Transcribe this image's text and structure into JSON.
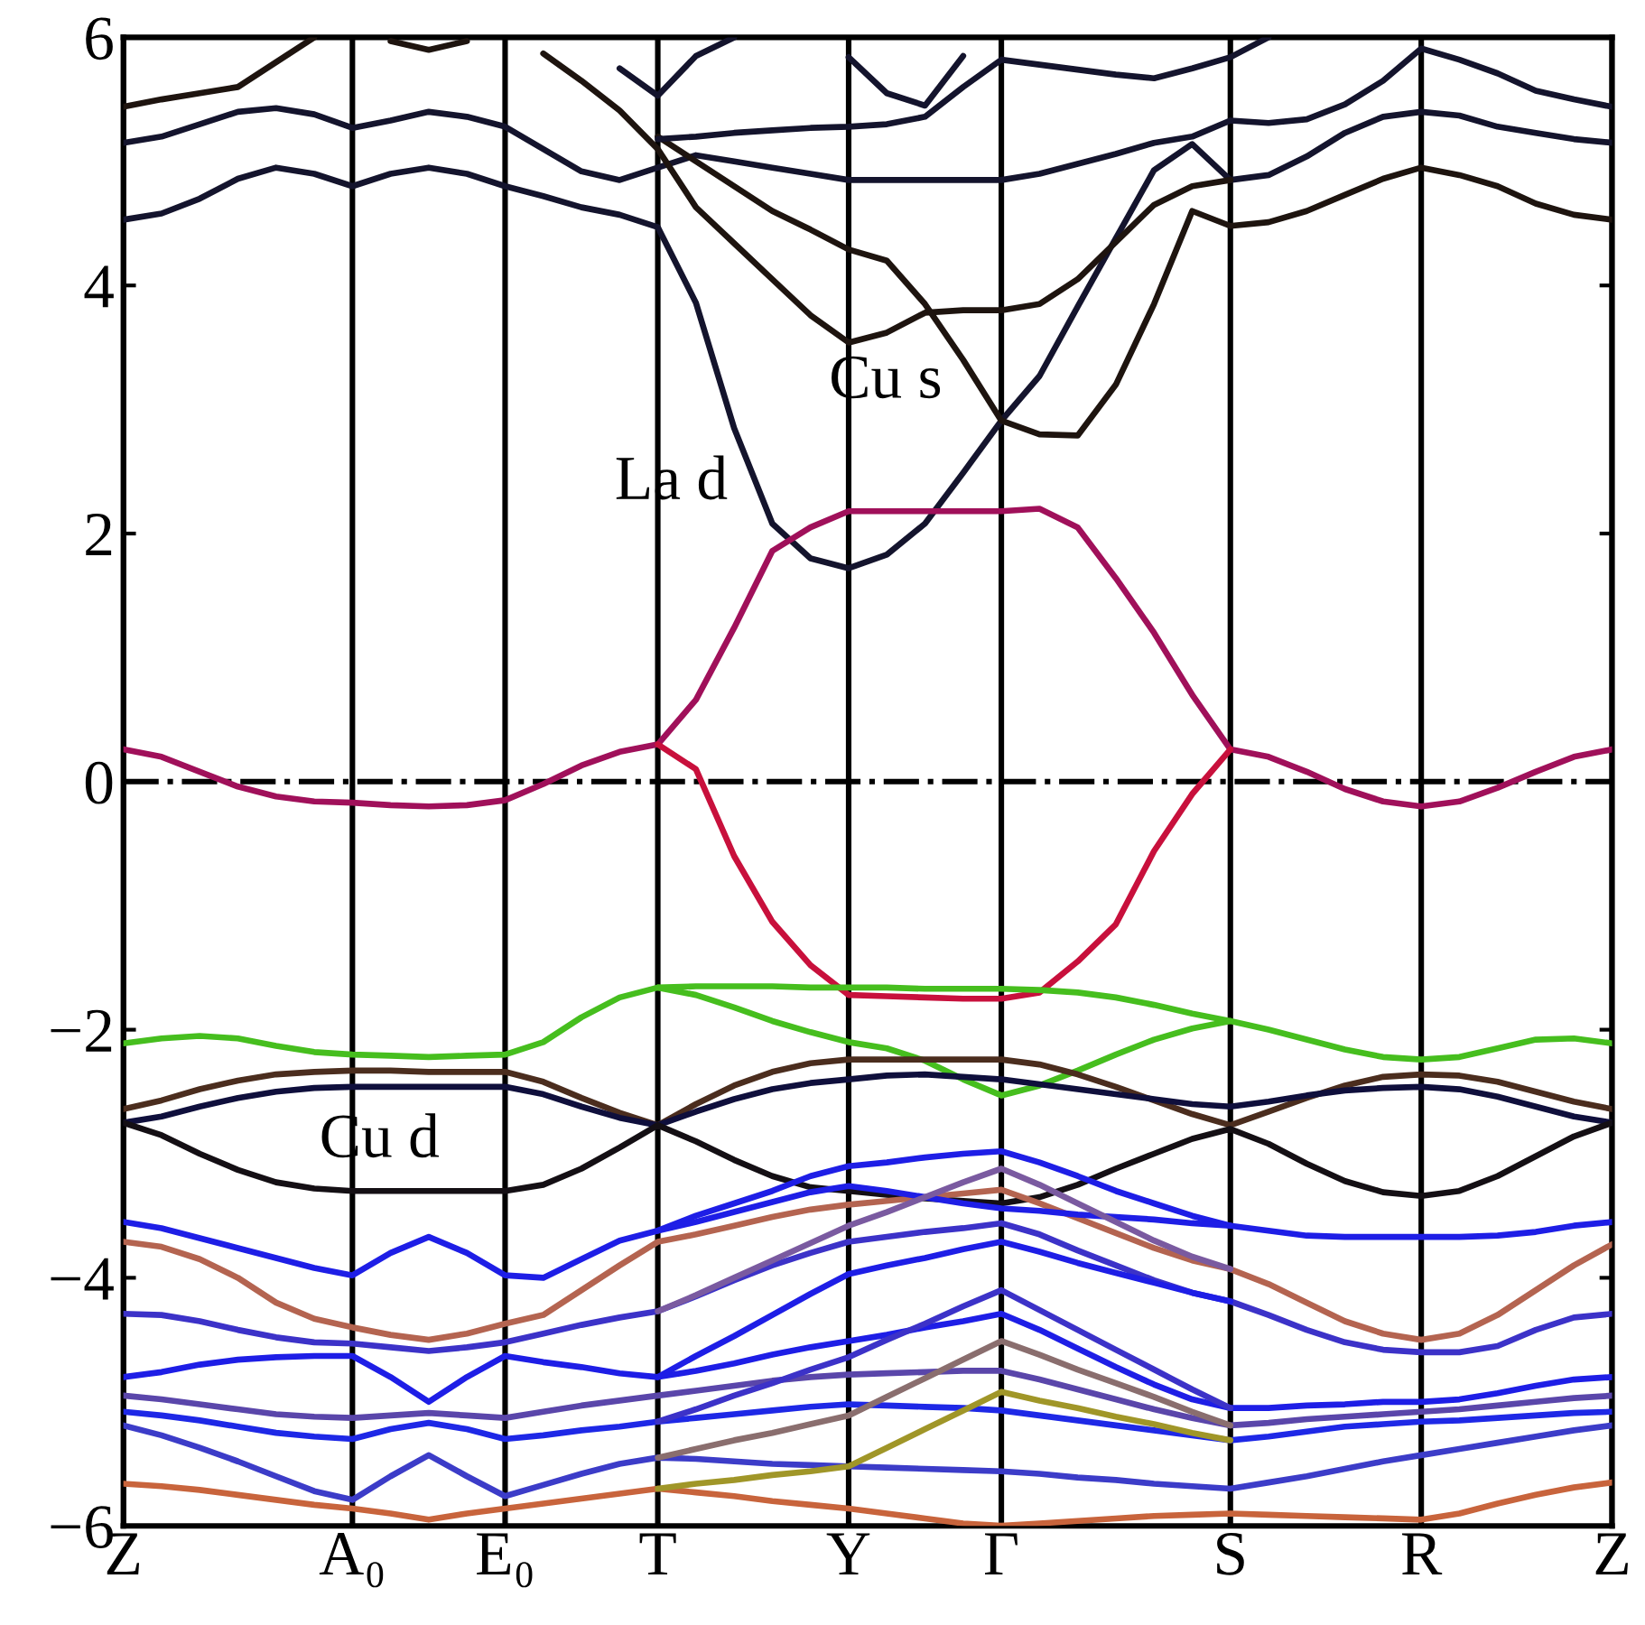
{
  "chart_data": {
    "type": "line",
    "categories": [
      "Z",
      null,
      null,
      null,
      null,
      null,
      "A₀",
      null,
      null,
      null,
      "E₀",
      null,
      null,
      null,
      "T",
      null,
      null,
      null,
      null,
      "Y",
      null,
      null,
      null,
      "Γ",
      null,
      null,
      null,
      null,
      null,
      "S",
      null,
      null,
      null,
      null,
      "R",
      null,
      null,
      null,
      null,
      "Z"
    ],
    "ylim": [
      -6,
      6
    ],
    "yticks": [
      {
        "value": -6,
        "label": "−6"
      },
      {
        "value": -4,
        "label": "−4"
      },
      {
        "value": -2,
        "label": "−2"
      },
      0,
      2,
      4,
      6
    ],
    "grid": "x",
    "ref_lines": [
      {
        "axis": "y",
        "value": 0,
        "color": "#000000",
        "line_style": "dashdot"
      }
    ],
    "annotations": [
      "Cu s",
      "La d",
      "Cu d"
    ],
    "series": [
      {
        "color": "#14142d",
        "values": [
          4.53,
          4.58,
          4.7,
          4.86,
          4.95,
          4.9,
          4.8,
          4.9,
          4.95,
          4.9,
          4.8,
          4.72,
          4.63,
          4.57,
          4.47,
          3.86,
          2.85,
          2.08,
          1.8,
          1.72,
          1.83,
          2.08,
          2.49,
          2.91,
          3.27,
          3.83,
          4.38,
          4.93,
          5.14,
          4.85,
          4.89,
          5.04,
          5.23,
          5.36,
          5.4,
          5.37,
          5.28,
          5.23,
          5.18,
          5.15
        ]
      },
      {
        "color": "#14142d",
        "values": [
          5.15,
          5.2,
          5.3,
          5.4,
          5.43,
          5.38,
          5.27,
          5.33,
          5.4,
          5.36,
          5.28,
          5.1,
          4.92,
          4.85,
          4.95,
          5.05,
          5.0,
          4.95,
          4.9,
          4.85,
          4.85,
          4.85,
          4.85,
          4.85,
          4.9,
          4.98,
          5.06,
          5.15,
          5.2,
          5.33,
          5.31,
          5.34,
          5.46,
          5.65,
          5.91,
          5.82,
          5.71,
          5.57,
          5.5,
          5.44
        ]
      },
      {
        "color": "#1e140f",
        "values": [
          5.44,
          5.5,
          5.55,
          5.6,
          5.8,
          6.0,
          null,
          5.97,
          5.9,
          5.97,
          null,
          5.87,
          5.65,
          5.41,
          5.1,
          4.63,
          4.34,
          4.05,
          3.76,
          3.54,
          3.62,
          3.78,
          3.8,
          3.8,
          3.85,
          4.05,
          4.35,
          4.65,
          4.8,
          4.85,
          null,
          null,
          null,
          null,
          null,
          null,
          null,
          null,
          null,
          null
        ]
      },
      {
        "color": "#1e140f",
        "values": [
          null,
          null,
          null,
          null,
          null,
          null,
          null,
          null,
          null,
          null,
          null,
          null,
          null,
          null,
          5.2,
          5.0,
          4.8,
          4.6,
          4.45,
          4.29,
          4.2,
          3.85,
          3.4,
          2.91,
          2.8,
          2.79,
          3.2,
          3.85,
          4.6,
          4.48,
          4.51,
          4.6,
          4.73,
          4.86,
          4.95,
          4.89,
          4.8,
          4.66,
          4.57,
          4.53
        ]
      },
      {
        "color": "#14142d",
        "values": [
          null,
          null,
          null,
          null,
          null,
          null,
          null,
          null,
          null,
          null,
          null,
          null,
          null,
          null,
          5.18,
          5.2,
          5.23,
          5.25,
          5.27,
          5.28,
          5.3,
          5.36,
          5.6,
          5.82,
          5.78,
          5.74,
          5.7,
          5.67,
          5.75,
          5.84,
          6.0,
          null,
          null,
          null,
          null,
          null,
          null,
          null,
          null,
          null
        ]
      },
      {
        "color": "#14142d",
        "values": [
          null,
          null,
          null,
          null,
          null,
          null,
          null,
          null,
          null,
          null,
          null,
          null,
          null,
          null,
          null,
          null,
          null,
          null,
          null,
          5.84,
          5.55,
          5.45,
          5.85,
          null,
          null,
          null,
          null,
          null,
          null,
          null,
          null,
          null,
          null,
          null,
          null,
          null,
          null,
          null,
          null,
          null
        ]
      },
      {
        "color": "#14142d",
        "values": [
          null,
          null,
          null,
          null,
          null,
          null,
          null,
          null,
          null,
          null,
          null,
          null,
          null,
          5.75,
          5.53,
          5.85,
          6.0,
          null,
          null,
          null,
          null,
          null,
          null,
          null,
          null,
          null,
          null,
          null,
          null,
          null,
          null,
          null,
          null,
          null,
          null,
          null,
          null,
          null,
          null,
          null
        ]
      },
      {
        "color": "#a0105a",
        "values": [
          0.26,
          0.2,
          0.08,
          -0.04,
          -0.12,
          -0.16,
          -0.17,
          -0.19,
          -0.2,
          -0.19,
          -0.15,
          -0.02,
          0.13,
          0.24,
          0.3,
          0.66,
          1.24,
          1.86,
          2.05,
          2.18,
          2.18,
          2.18,
          2.18,
          2.18,
          2.2,
          2.05,
          1.64,
          1.2,
          0.7,
          0.26,
          0.2,
          0.08,
          -0.06,
          -0.16,
          -0.2,
          -0.16,
          -0.05,
          0.08,
          0.2,
          0.26
        ]
      },
      {
        "color": "#c8103c",
        "values": [
          null,
          null,
          null,
          null,
          null,
          null,
          null,
          null,
          null,
          null,
          null,
          null,
          null,
          null,
          0.3,
          0.1,
          -0.6,
          -1.13,
          -1.48,
          -1.72,
          -1.73,
          -1.74,
          -1.75,
          -1.75,
          -1.7,
          -1.45,
          -1.15,
          -0.56,
          -0.1,
          0.26,
          null,
          null,
          null,
          null,
          null,
          null,
          null,
          null,
          null,
          null
        ]
      },
      {
        "color": "#46be1e",
        "values": [
          -2.11,
          -2.07,
          -2.05,
          -2.07,
          -2.13,
          -2.18,
          -2.2,
          -2.21,
          -2.22,
          -2.21,
          -2.2,
          -2.1,
          -1.9,
          -1.74,
          -1.66,
          -1.65,
          -1.65,
          -1.65,
          -1.66,
          -1.66,
          -1.66,
          -1.67,
          -1.67,
          -1.67,
          -1.68,
          -1.7,
          -1.74,
          -1.8,
          -1.87,
          -1.93,
          -2.0,
          -2.08,
          -2.16,
          -2.22,
          -2.24,
          -2.22,
          -2.15,
          -2.08,
          -2.07,
          -2.11
        ]
      },
      {
        "color": "#46be1e",
        "values": [
          null,
          null,
          null,
          null,
          null,
          null,
          null,
          null,
          null,
          null,
          null,
          null,
          null,
          null,
          -1.66,
          -1.72,
          -1.82,
          -1.93,
          -2.02,
          -2.1,
          -2.15,
          -2.25,
          -2.4,
          -2.53,
          -2.45,
          -2.33,
          -2.2,
          -2.08,
          -1.99,
          -1.93,
          null,
          null,
          null,
          null,
          null,
          null,
          null,
          null,
          null,
          null
        ]
      },
      {
        "color": "#4b2d1e",
        "values": [
          -2.64,
          -2.57,
          -2.48,
          -2.41,
          -2.36,
          -2.34,
          -2.33,
          -2.33,
          -2.34,
          -2.34,
          -2.34,
          -2.42,
          -2.55,
          -2.67,
          -2.77,
          -2.6,
          -2.45,
          -2.34,
          -2.27,
          -2.24,
          -2.24,
          -2.24,
          -2.24,
          -2.24,
          -2.28,
          -2.36,
          -2.46,
          -2.57,
          -2.68,
          -2.77,
          -2.66,
          -2.55,
          -2.45,
          -2.38,
          -2.36,
          -2.37,
          -2.42,
          -2.5,
          -2.58,
          -2.64
        ]
      },
      {
        "color": "#0f0f3c",
        "values": [
          -2.75,
          -2.7,
          -2.62,
          -2.55,
          -2.5,
          -2.47,
          -2.46,
          -2.46,
          -2.46,
          -2.46,
          -2.46,
          -2.52,
          -2.62,
          -2.71,
          -2.77,
          -2.66,
          -2.56,
          -2.48,
          -2.43,
          -2.4,
          -2.37,
          -2.36,
          -2.38,
          -2.4,
          -2.44,
          -2.48,
          -2.52,
          -2.56,
          -2.6,
          -2.62,
          -2.58,
          -2.53,
          -2.49,
          -2.47,
          -2.46,
          -2.48,
          -2.54,
          -2.62,
          -2.7,
          -2.75
        ]
      },
      {
        "color": "#140f14",
        "values": [
          -2.75,
          -2.85,
          -3.0,
          -3.13,
          -3.23,
          -3.28,
          -3.3,
          -3.3,
          -3.3,
          -3.3,
          -3.3,
          -3.25,
          -3.12,
          -2.95,
          -2.77,
          -2.9,
          -3.05,
          -3.18,
          -3.27,
          -3.3,
          -3.33,
          -3.36,
          -3.38,
          -3.4,
          -3.35,
          -3.25,
          -3.12,
          -3.0,
          -2.88,
          -2.8,
          -2.92,
          -3.08,
          -3.22,
          -3.31,
          -3.34,
          -3.3,
          -3.18,
          -3.02,
          -2.86,
          -2.75
        ]
      },
      {
        "color": "#1e1ee6",
        "values": [
          -3.55,
          -3.6,
          -3.68,
          -3.76,
          -3.84,
          -3.92,
          -3.98,
          -3.8,
          -3.67,
          -3.8,
          -3.98,
          -4.0,
          -3.85,
          -3.7,
          -3.62,
          -3.5,
          -3.4,
          -3.3,
          -3.18,
          -3.1,
          -3.07,
          -3.03,
          -3.0,
          -2.98,
          -3.07,
          -3.18,
          -3.3,
          -3.4,
          -3.5,
          -3.58,
          -3.62,
          -3.66,
          -3.67,
          -3.67,
          -3.67,
          -3.67,
          -3.66,
          -3.63,
          -3.58,
          -3.55
        ]
      },
      {
        "color": "#b46450",
        "values": [
          -3.71,
          -3.75,
          -3.85,
          -4.0,
          -4.2,
          -4.33,
          -4.4,
          -4.46,
          -4.5,
          -4.45,
          -4.37,
          -4.3,
          -4.1,
          -3.9,
          -3.71,
          -3.65,
          -3.58,
          -3.51,
          -3.45,
          -3.41,
          -3.38,
          -3.35,
          -3.32,
          -3.29,
          -3.4,
          -3.52,
          -3.64,
          -3.76,
          -3.86,
          -3.93,
          -4.05,
          -4.2,
          -4.35,
          -4.45,
          -4.5,
          -4.45,
          -4.3,
          -4.1,
          -3.9,
          -3.73
        ]
      },
      {
        "color": "#3c32c8",
        "values": [
          -4.29,
          -4.3,
          -4.35,
          -4.42,
          -4.48,
          -4.52,
          -4.53,
          -4.56,
          -4.59,
          -4.56,
          -4.52,
          -4.45,
          -4.38,
          -4.32,
          -4.27,
          -4.15,
          -4.02,
          -3.9,
          -3.8,
          -3.71,
          -3.67,
          -3.63,
          -3.6,
          -3.56,
          -3.65,
          -3.78,
          -3.9,
          -4.02,
          -4.12,
          -4.19,
          -4.3,
          -4.42,
          -4.52,
          -4.58,
          -4.6,
          -4.6,
          -4.55,
          -4.42,
          -4.32,
          -4.29
        ]
      },
      {
        "color": "#1e1ee6",
        "values": [
          -4.8,
          -4.76,
          -4.7,
          -4.66,
          -4.64,
          -4.63,
          -4.63,
          -4.8,
          -5.0,
          -4.8,
          -4.63,
          -4.68,
          -4.72,
          -4.77,
          -4.8,
          -4.75,
          -4.69,
          -4.62,
          -4.56,
          -4.51,
          -4.46,
          -4.4,
          -4.35,
          -4.29,
          -4.42,
          -4.57,
          -4.72,
          -4.86,
          -4.98,
          -5.05,
          -5.05,
          -5.03,
          -5.02,
          -5.0,
          -5.0,
          -4.98,
          -4.93,
          -4.87,
          -4.82,
          -4.8
        ]
      },
      {
        "color": "#5a46aa",
        "values": [
          -4.95,
          -4.98,
          -5.02,
          -5.06,
          -5.1,
          -5.12,
          -5.13,
          -5.11,
          -5.09,
          -5.11,
          -5.13,
          -5.08,
          -5.03,
          -4.99,
          -4.95,
          -4.91,
          -4.87,
          -4.83,
          -4.8,
          -4.78,
          -4.77,
          -4.76,
          -4.75,
          -4.75,
          -4.82,
          -4.9,
          -4.98,
          -5.06,
          -5.13,
          -5.19,
          -5.17,
          -5.14,
          -5.12,
          -5.1,
          -5.08,
          -5.06,
          -5.03,
          -5.0,
          -4.97,
          -4.95
        ]
      },
      {
        "color": "#1e28e6",
        "values": [
          -5.08,
          -5.11,
          -5.15,
          -5.2,
          -5.25,
          -5.28,
          -5.3,
          -5.22,
          -5.17,
          -5.22,
          -5.3,
          -5.27,
          -5.23,
          -5.2,
          -5.16,
          -5.13,
          -5.1,
          -5.07,
          -5.04,
          -5.02,
          -5.03,
          -5.04,
          -5.05,
          -5.07,
          -5.11,
          -5.15,
          -5.19,
          -5.23,
          -5.27,
          -5.31,
          -5.28,
          -5.24,
          -5.2,
          -5.18,
          -5.16,
          -5.15,
          -5.13,
          -5.11,
          -5.09,
          -5.08
        ]
      },
      {
        "color": "#3c3cc8",
        "values": [
          -5.19,
          -5.27,
          -5.37,
          -5.48,
          -5.6,
          -5.72,
          -5.79,
          -5.6,
          -5.43,
          -5.6,
          -5.76,
          -5.67,
          -5.58,
          -5.5,
          -5.45,
          -5.46,
          -5.48,
          -5.5,
          -5.51,
          -5.52,
          -5.53,
          -5.54,
          -5.55,
          -5.56,
          -5.58,
          -5.61,
          -5.63,
          -5.66,
          -5.68,
          -5.7,
          -5.65,
          -5.6,
          -5.54,
          -5.48,
          -5.43,
          -5.38,
          -5.33,
          -5.28,
          -5.23,
          -5.19
        ]
      },
      {
        "color": "#c8643c",
        "values": [
          -5.66,
          -5.68,
          -5.71,
          -5.75,
          -5.79,
          -5.83,
          -5.86,
          -5.9,
          -5.95,
          -5.9,
          -5.86,
          -5.82,
          -5.78,
          -5.74,
          -5.7,
          -5.73,
          -5.76,
          -5.8,
          -5.83,
          -5.86,
          -5.9,
          -5.94,
          -5.98,
          -6.0,
          -5.98,
          -5.96,
          -5.94,
          -5.92,
          -5.91,
          -5.9,
          -5.91,
          -5.92,
          -5.93,
          -5.94,
          -5.95,
          -5.9,
          -5.82,
          -5.75,
          -5.69,
          -5.65
        ]
      },
      {
        "color": "#1e1ee6",
        "values": [
          null,
          null,
          null,
          null,
          null,
          null,
          null,
          null,
          null,
          null,
          null,
          null,
          null,
          null,
          -3.62,
          -3.55,
          -3.47,
          -3.39,
          -3.31,
          -3.26,
          -3.3,
          -3.35,
          -3.4,
          -3.44,
          -3.46,
          -3.49,
          -3.51,
          -3.53,
          -3.56,
          -3.58,
          null,
          null,
          null,
          null,
          null,
          null,
          null,
          null,
          null,
          null
        ]
      },
      {
        "color": "#7a5aa0",
        "values": [
          null,
          null,
          null,
          null,
          null,
          null,
          null,
          null,
          null,
          null,
          null,
          null,
          null,
          null,
          -4.27,
          -4.14,
          -4.0,
          -3.86,
          -3.72,
          -3.58,
          -3.47,
          -3.35,
          -3.23,
          -3.12,
          -3.25,
          -3.4,
          -3.55,
          -3.7,
          -3.83,
          -3.93,
          null,
          null,
          null,
          null,
          null,
          null,
          null,
          null,
          null,
          null
        ]
      },
      {
        "color": "#1e1ee6",
        "values": [
          null,
          null,
          null,
          null,
          null,
          null,
          null,
          null,
          null,
          null,
          null,
          null,
          null,
          null,
          -4.8,
          -4.63,
          -4.47,
          -4.3,
          -4.13,
          -3.97,
          -3.9,
          -3.84,
          -3.77,
          -3.71,
          -3.79,
          -3.88,
          -3.96,
          -4.04,
          -4.12,
          -4.19,
          null,
          null,
          null,
          null,
          null,
          null,
          null,
          null,
          null,
          null
        ]
      },
      {
        "color": "#3c32c8",
        "values": [
          null,
          null,
          null,
          null,
          null,
          null,
          null,
          null,
          null,
          null,
          null,
          null,
          null,
          null,
          -5.16,
          -5.06,
          -4.95,
          -4.85,
          -4.74,
          -4.64,
          -4.5,
          -4.37,
          -4.23,
          -4.1,
          -4.26,
          -4.42,
          -4.58,
          -4.74,
          -4.9,
          -5.05,
          null,
          null,
          null,
          null,
          null,
          null,
          null,
          null,
          null,
          null
        ]
      },
      {
        "color": "#8a6e6e",
        "values": [
          null,
          null,
          null,
          null,
          null,
          null,
          null,
          null,
          null,
          null,
          null,
          null,
          null,
          null,
          -5.45,
          -5.38,
          -5.31,
          -5.25,
          -5.18,
          -5.11,
          -4.96,
          -4.81,
          -4.66,
          -4.51,
          -4.62,
          -4.74,
          -4.85,
          -4.96,
          -5.08,
          -5.19,
          null,
          null,
          null,
          null,
          null,
          null,
          null,
          null,
          null,
          null
        ]
      },
      {
        "color": "#a09628",
        "values": [
          null,
          null,
          null,
          null,
          null,
          null,
          null,
          null,
          null,
          null,
          null,
          null,
          null,
          null,
          -5.7,
          -5.66,
          -5.63,
          -5.59,
          -5.56,
          -5.52,
          -5.37,
          -5.22,
          -5.07,
          -4.92,
          -4.99,
          -5.05,
          -5.12,
          -5.18,
          -5.25,
          -5.31,
          null,
          null,
          null,
          null,
          null,
          null,
          null,
          null,
          null,
          null
        ]
      }
    ]
  }
}
